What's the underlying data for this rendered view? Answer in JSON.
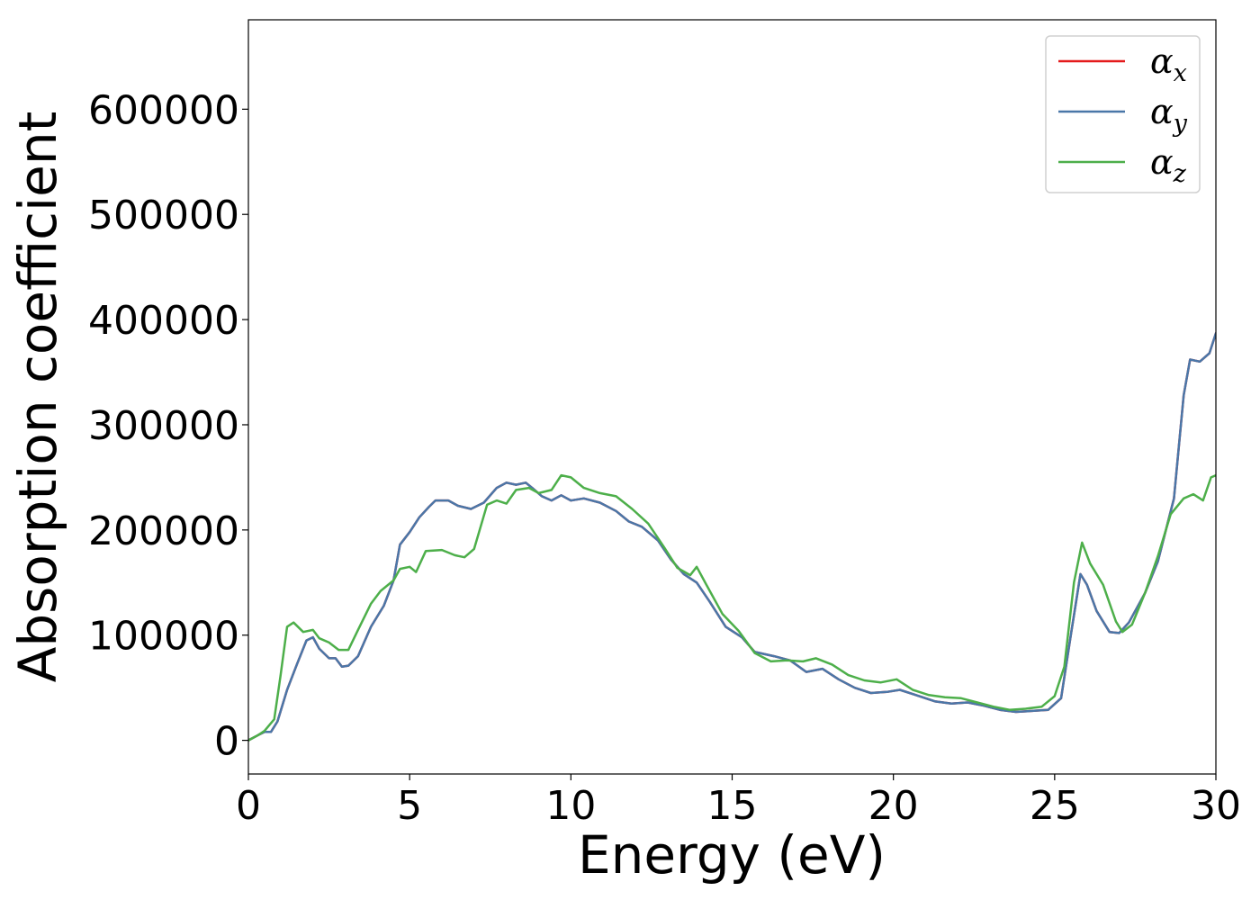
{
  "chart_data": {
    "type": "line",
    "xlabel": "Energy (eV)",
    "ylabel": "Absorption coefficient",
    "xlim": [
      0,
      30
    ],
    "ylim": [
      -32000,
      685000
    ],
    "x_ticks": [
      0,
      5,
      10,
      15,
      20,
      25,
      30
    ],
    "x_tick_labels": [
      "0",
      "5",
      "10",
      "15",
      "20",
      "25",
      "30"
    ],
    "y_ticks": [
      0,
      100000,
      200000,
      300000,
      400000,
      500000,
      600000
    ],
    "y_tick_labels": [
      "0",
      "100000",
      "200000",
      "300000",
      "400000",
      "500000",
      "600000"
    ],
    "grid": false,
    "legend_position": "top-right",
    "series": [
      {
        "name": "αx",
        "legend_base": "α",
        "legend_sub": "x",
        "color": "#e41a1c",
        "points": [
          [
            0,
            0
          ],
          [
            0.3,
            5000
          ],
          [
            0.5,
            8000
          ],
          [
            0.7,
            8000
          ],
          [
            0.9,
            18000
          ],
          [
            1.2,
            48000
          ],
          [
            1.5,
            72000
          ],
          [
            1.8,
            95000
          ],
          [
            2.0,
            98000
          ],
          [
            2.2,
            87000
          ],
          [
            2.5,
            78000
          ],
          [
            2.7,
            78000
          ],
          [
            2.9,
            70000
          ],
          [
            3.1,
            71000
          ],
          [
            3.4,
            80000
          ],
          [
            3.8,
            108000
          ],
          [
            4.2,
            128000
          ],
          [
            4.5,
            152000
          ],
          [
            4.7,
            186000
          ],
          [
            5.0,
            198000
          ],
          [
            5.3,
            212000
          ],
          [
            5.6,
            222000
          ],
          [
            5.8,
            228000
          ],
          [
            6.2,
            228000
          ],
          [
            6.5,
            223000
          ],
          [
            6.9,
            220000
          ],
          [
            7.3,
            226000
          ],
          [
            7.7,
            240000
          ],
          [
            8.0,
            245000
          ],
          [
            8.3,
            243000
          ],
          [
            8.6,
            245000
          ],
          [
            8.8,
            240000
          ],
          [
            9.1,
            232000
          ],
          [
            9.4,
            228000
          ],
          [
            9.7,
            233000
          ],
          [
            10.0,
            228000
          ],
          [
            10.4,
            230000
          ],
          [
            10.9,
            226000
          ],
          [
            11.4,
            218000
          ],
          [
            11.8,
            208000
          ],
          [
            12.2,
            203000
          ],
          [
            12.7,
            190000
          ],
          [
            13.1,
            172000
          ],
          [
            13.5,
            158000
          ],
          [
            13.9,
            150000
          ],
          [
            14.3,
            132000
          ],
          [
            14.8,
            108000
          ],
          [
            15.3,
            98000
          ],
          [
            15.7,
            84000
          ],
          [
            16.3,
            80000
          ],
          [
            16.8,
            76000
          ],
          [
            17.3,
            65000
          ],
          [
            17.8,
            68000
          ],
          [
            18.3,
            58000
          ],
          [
            18.8,
            50000
          ],
          [
            19.3,
            45000
          ],
          [
            19.8,
            46000
          ],
          [
            20.2,
            48000
          ],
          [
            20.7,
            43000
          ],
          [
            21.3,
            37000
          ],
          [
            21.8,
            35000
          ],
          [
            22.3,
            36000
          ],
          [
            22.8,
            33000
          ],
          [
            23.3,
            29000
          ],
          [
            23.8,
            27000
          ],
          [
            24.3,
            28000
          ],
          [
            24.8,
            29000
          ],
          [
            25.2,
            40000
          ],
          [
            25.5,
            100000
          ],
          [
            25.8,
            158000
          ],
          [
            26.0,
            148000
          ],
          [
            26.3,
            123000
          ],
          [
            26.7,
            103000
          ],
          [
            27.0,
            102000
          ],
          [
            27.3,
            112000
          ],
          [
            27.8,
            140000
          ],
          [
            28.2,
            170000
          ],
          [
            28.7,
            230000
          ],
          [
            29.0,
            328000
          ],
          [
            29.2,
            362000
          ],
          [
            29.5,
            360000
          ],
          [
            29.8,
            368000
          ],
          [
            30.0,
            387000
          ]
        ]
      },
      {
        "name": "αy",
        "legend_base": "α",
        "legend_sub": "y",
        "color": "#4a77a8",
        "points": [
          [
            0,
            0
          ],
          [
            0.3,
            5000
          ],
          [
            0.5,
            8000
          ],
          [
            0.7,
            8000
          ],
          [
            0.9,
            18000
          ],
          [
            1.2,
            48000
          ],
          [
            1.5,
            72000
          ],
          [
            1.8,
            95000
          ],
          [
            2.0,
            98000
          ],
          [
            2.2,
            87000
          ],
          [
            2.5,
            78000
          ],
          [
            2.7,
            78000
          ],
          [
            2.9,
            70000
          ],
          [
            3.1,
            71000
          ],
          [
            3.4,
            80000
          ],
          [
            3.8,
            108000
          ],
          [
            4.2,
            128000
          ],
          [
            4.5,
            152000
          ],
          [
            4.7,
            186000
          ],
          [
            5.0,
            198000
          ],
          [
            5.3,
            212000
          ],
          [
            5.6,
            222000
          ],
          [
            5.8,
            228000
          ],
          [
            6.2,
            228000
          ],
          [
            6.5,
            223000
          ],
          [
            6.9,
            220000
          ],
          [
            7.3,
            226000
          ],
          [
            7.7,
            240000
          ],
          [
            8.0,
            245000
          ],
          [
            8.3,
            243000
          ],
          [
            8.6,
            245000
          ],
          [
            8.8,
            240000
          ],
          [
            9.1,
            232000
          ],
          [
            9.4,
            228000
          ],
          [
            9.7,
            233000
          ],
          [
            10.0,
            228000
          ],
          [
            10.4,
            230000
          ],
          [
            10.9,
            226000
          ],
          [
            11.4,
            218000
          ],
          [
            11.8,
            208000
          ],
          [
            12.2,
            203000
          ],
          [
            12.7,
            190000
          ],
          [
            13.1,
            172000
          ],
          [
            13.5,
            158000
          ],
          [
            13.9,
            150000
          ],
          [
            14.3,
            132000
          ],
          [
            14.8,
            108000
          ],
          [
            15.3,
            98000
          ],
          [
            15.7,
            84000
          ],
          [
            16.3,
            80000
          ],
          [
            16.8,
            76000
          ],
          [
            17.3,
            65000
          ],
          [
            17.8,
            68000
          ],
          [
            18.3,
            58000
          ],
          [
            18.8,
            50000
          ],
          [
            19.3,
            45000
          ],
          [
            19.8,
            46000
          ],
          [
            20.2,
            48000
          ],
          [
            20.7,
            43000
          ],
          [
            21.3,
            37000
          ],
          [
            21.8,
            35000
          ],
          [
            22.3,
            36000
          ],
          [
            22.8,
            33000
          ],
          [
            23.3,
            29000
          ],
          [
            23.8,
            27000
          ],
          [
            24.3,
            28000
          ],
          [
            24.8,
            29000
          ],
          [
            25.2,
            40000
          ],
          [
            25.5,
            100000
          ],
          [
            25.8,
            158000
          ],
          [
            26.0,
            148000
          ],
          [
            26.3,
            123000
          ],
          [
            26.7,
            103000
          ],
          [
            27.0,
            102000
          ],
          [
            27.3,
            112000
          ],
          [
            27.8,
            140000
          ],
          [
            28.2,
            170000
          ],
          [
            28.7,
            230000
          ],
          [
            29.0,
            328000
          ],
          [
            29.2,
            362000
          ],
          [
            29.5,
            360000
          ],
          [
            29.8,
            368000
          ],
          [
            30.0,
            387000
          ]
        ]
      },
      {
        "name": "αz",
        "legend_base": "α",
        "legend_sub": "z",
        "color": "#4daf4a",
        "points": [
          [
            0,
            0
          ],
          [
            0.3,
            5000
          ],
          [
            0.5,
            9000
          ],
          [
            0.8,
            20000
          ],
          [
            1.0,
            62000
          ],
          [
            1.2,
            108000
          ],
          [
            1.4,
            112000
          ],
          [
            1.7,
            103000
          ],
          [
            2.0,
            105000
          ],
          [
            2.2,
            97000
          ],
          [
            2.5,
            93000
          ],
          [
            2.8,
            86000
          ],
          [
            3.1,
            86000
          ],
          [
            3.4,
            105000
          ],
          [
            3.8,
            130000
          ],
          [
            4.1,
            142000
          ],
          [
            4.5,
            152000
          ],
          [
            4.7,
            163000
          ],
          [
            5.0,
            165000
          ],
          [
            5.2,
            160000
          ],
          [
            5.5,
            180000
          ],
          [
            6.0,
            181000
          ],
          [
            6.4,
            176000
          ],
          [
            6.7,
            174000
          ],
          [
            7.0,
            182000
          ],
          [
            7.4,
            224000
          ],
          [
            7.7,
            228000
          ],
          [
            8.0,
            225000
          ],
          [
            8.3,
            238000
          ],
          [
            8.7,
            240000
          ],
          [
            9.0,
            235000
          ],
          [
            9.4,
            238000
          ],
          [
            9.7,
            252000
          ],
          [
            10.0,
            250000
          ],
          [
            10.4,
            240000
          ],
          [
            10.9,
            235000
          ],
          [
            11.4,
            232000
          ],
          [
            11.9,
            220000
          ],
          [
            12.4,
            206000
          ],
          [
            12.9,
            183000
          ],
          [
            13.3,
            164000
          ],
          [
            13.7,
            157000
          ],
          [
            13.9,
            165000
          ],
          [
            14.2,
            148000
          ],
          [
            14.7,
            120000
          ],
          [
            15.2,
            104000
          ],
          [
            15.7,
            83000
          ],
          [
            16.2,
            75000
          ],
          [
            16.7,
            76000
          ],
          [
            17.2,
            75000
          ],
          [
            17.6,
            78000
          ],
          [
            18.1,
            72000
          ],
          [
            18.6,
            62000
          ],
          [
            19.1,
            57000
          ],
          [
            19.6,
            55000
          ],
          [
            20.1,
            58000
          ],
          [
            20.6,
            48000
          ],
          [
            21.1,
            43000
          ],
          [
            21.6,
            41000
          ],
          [
            22.1,
            40000
          ],
          [
            22.6,
            36000
          ],
          [
            23.1,
            32000
          ],
          [
            23.6,
            29000
          ],
          [
            24.1,
            30000
          ],
          [
            24.6,
            32000
          ],
          [
            25.0,
            42000
          ],
          [
            25.3,
            70000
          ],
          [
            25.6,
            150000
          ],
          [
            25.85,
            188000
          ],
          [
            26.1,
            168000
          ],
          [
            26.5,
            148000
          ],
          [
            26.9,
            113000
          ],
          [
            27.1,
            103000
          ],
          [
            27.4,
            110000
          ],
          [
            27.8,
            140000
          ],
          [
            28.2,
            175000
          ],
          [
            28.6,
            215000
          ],
          [
            29.0,
            230000
          ],
          [
            29.3,
            234000
          ],
          [
            29.6,
            228000
          ],
          [
            29.85,
            250000
          ],
          [
            30.0,
            252000
          ]
        ]
      }
    ]
  }
}
